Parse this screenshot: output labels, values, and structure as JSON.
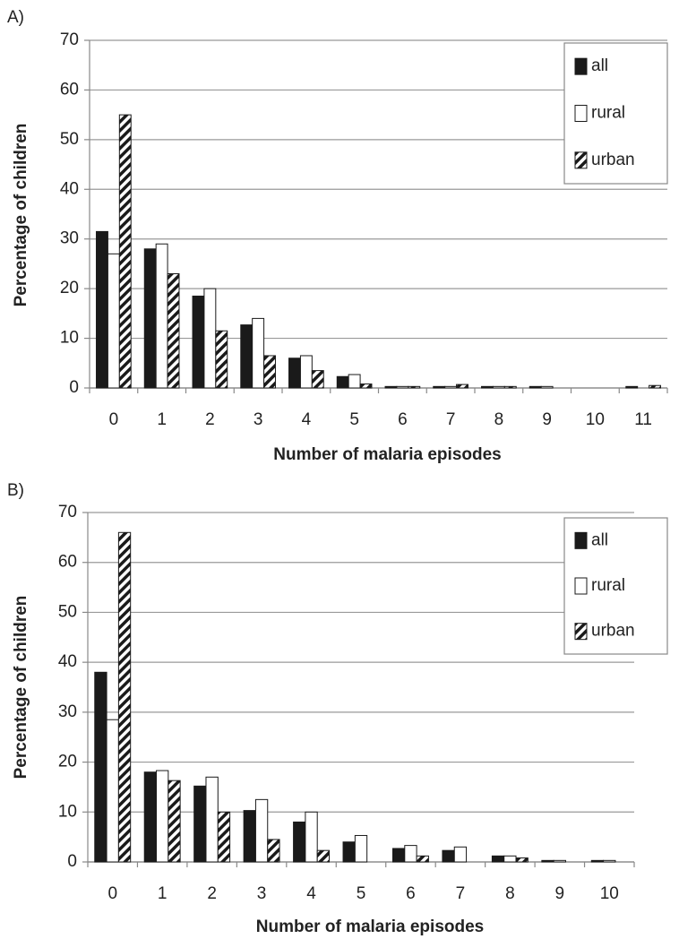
{
  "chart_data": [
    {
      "type": "bar",
      "panel_label": "A)",
      "x_label": "Number of malaria episodes",
      "y_label": "Percentage of children",
      "categories": [
        "0",
        "1",
        "2",
        "3",
        "4",
        "5",
        "6",
        "7",
        "8",
        "9",
        "10",
        "11"
      ],
      "series": [
        {
          "name": "all",
          "color": "#1a1a1a",
          "values": [
            31.5,
            28,
            18.5,
            12.7,
            6,
            2.3,
            0.3,
            0.3,
            0.3,
            0.3,
            0,
            0.3
          ]
        },
        {
          "name": "rural",
          "color": "#ffffff",
          "values": [
            27,
            29,
            20,
            14,
            6.5,
            2.7,
            0.3,
            0.3,
            0.3,
            0.3,
            0,
            0
          ]
        },
        {
          "name": "urban",
          "color": "#1a1a1a",
          "pattern": "hatch",
          "values": [
            55,
            23,
            11.5,
            6.5,
            3.5,
            0.8,
            0.3,
            0.7,
            0.3,
            0,
            0,
            0.5
          ]
        }
      ],
      "ylim": [
        0,
        70
      ],
      "yticks": [
        0,
        10,
        20,
        30,
        40,
        50,
        60,
        70
      ],
      "grid": true,
      "legend": "top-right"
    },
    {
      "type": "bar",
      "panel_label": "B)",
      "x_label": "Number of malaria episodes",
      "y_label": "Percentage of children",
      "categories": [
        "0",
        "1",
        "2",
        "3",
        "4",
        "5",
        "6",
        "7",
        "8",
        "9",
        "10"
      ],
      "series": [
        {
          "name": "all",
          "color": "#1a1a1a",
          "values": [
            38,
            18,
            15.2,
            10.3,
            8,
            4,
            2.7,
            2.3,
            1.2,
            0.3,
            0.3
          ]
        },
        {
          "name": "rural",
          "color": "#ffffff",
          "values": [
            28.5,
            18.3,
            17,
            12.5,
            10,
            5.3,
            3.3,
            3,
            1.2,
            0.3,
            0.3
          ]
        },
        {
          "name": "urban",
          "color": "#1a1a1a",
          "pattern": "hatch",
          "values": [
            66,
            16.3,
            10,
            4.5,
            2.3,
            0,
            1.2,
            0,
            0.8,
            0,
            0
          ]
        }
      ],
      "ylim": [
        0,
        70
      ],
      "yticks": [
        0,
        10,
        20,
        30,
        40,
        50,
        60,
        70
      ],
      "grid": true,
      "legend": "top-right"
    }
  ]
}
